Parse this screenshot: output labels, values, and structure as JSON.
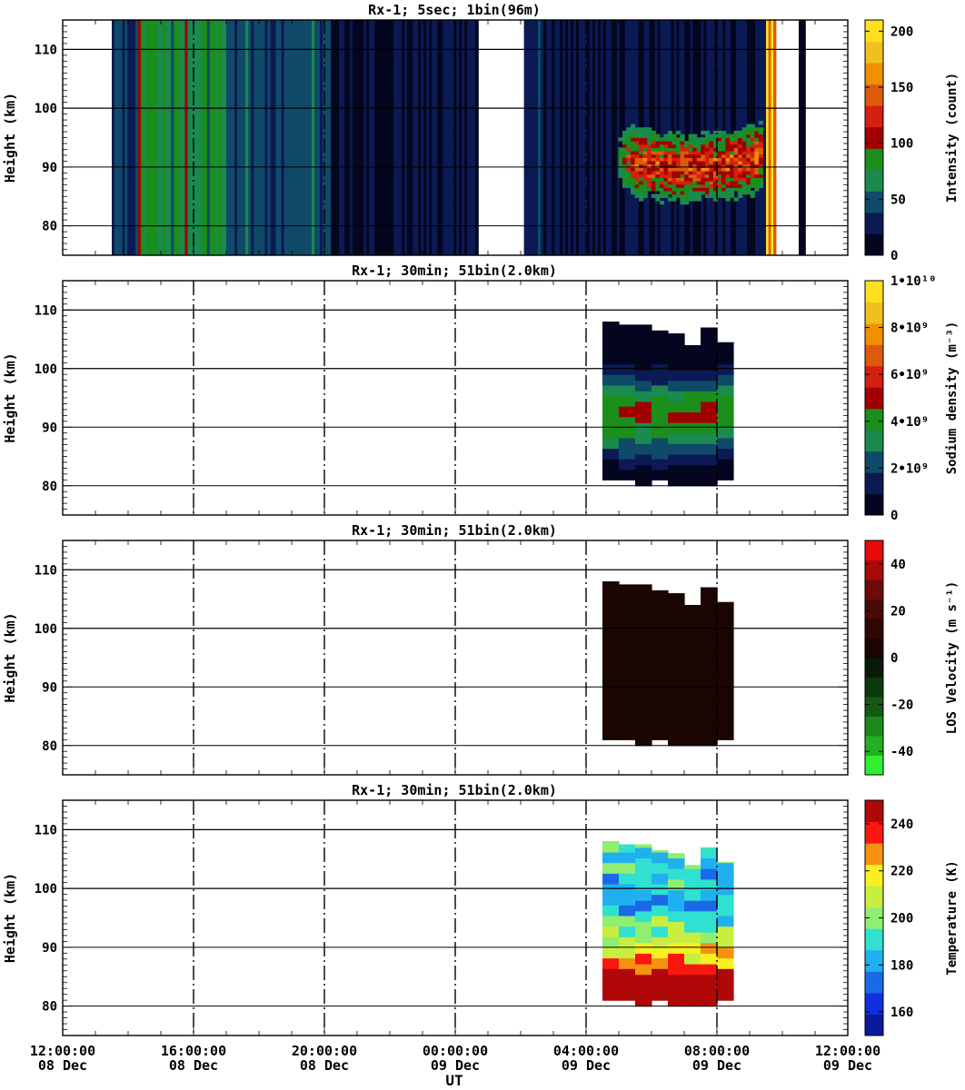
{
  "figure": {
    "shared_xlabel": "UT",
    "x_tick_labels": [
      {
        "time": "12:00:00",
        "date": "08 Dec"
      },
      {
        "time": "16:00:00",
        "date": "08 Dec"
      },
      {
        "time": "20:00:00",
        "date": "08 Dec"
      },
      {
        "time": "00:00:00",
        "date": "09 Dec"
      },
      {
        "time": "04:00:00",
        "date": "09 Dec"
      },
      {
        "time": "08:00:00",
        "date": "09 Dec"
      },
      {
        "time": "12:00:00",
        "date": "09 Dec"
      }
    ]
  },
  "chart_data": [
    {
      "type": "heatmap",
      "title": "Rx-1;  5sec; 1bin(96m)",
      "xlabel": "",
      "ylabel": "Height (km)",
      "xlim_hours": [
        0,
        24
      ],
      "ylim": [
        75,
        115
      ],
      "yticks": [
        80,
        90,
        100,
        110
      ],
      "colorbar": {
        "label": "Intensity (count)",
        "range": [
          0,
          210
        ],
        "ticks": [
          {
            "v": 0,
            "t": "0"
          },
          {
            "v": 50,
            "t": "50"
          },
          {
            "v": 100,
            "t": "100"
          },
          {
            "v": 150,
            "t": "150"
          },
          {
            "v": 200,
            "t": "200"
          }
        ],
        "colors": [
          "#04061f",
          "#0b1a55",
          "#0f4a68",
          "#1a8a4e",
          "#1b8e1b",
          "#a00000",
          "#d42010",
          "#dd5a0a",
          "#f09000",
          "#f0c020",
          "#ffe020"
        ]
      },
      "description_note": "",
      "series": [
        {
          "name": "",
          "segments": [
            {
              "x": [
                1.5,
                2.3
              ],
              "level": 40
            },
            {
              "x": [
                2.3,
                5.0
              ],
              "level": 75
            },
            {
              "x": [
                5.0,
                8.2
              ],
              "level": 45
            },
            {
              "x": [
                8.2,
                12.7
              ],
              "level": 18
            },
            {
              "x": [
                14.1,
                14.7
              ],
              "level": 35
            },
            {
              "x": [
                14.7,
                21.5
              ],
              "level": 20
            },
            {
              "x": [
                21.5,
                21.8
              ],
              "level": 180
            },
            {
              "x": [
                22.5,
                22.7
              ],
              "level": 5
            }
          ]
        },
        {
          "name": "",
          "layer": {
            "x": [
              16.1,
              21.4
            ],
            "y": [
              82,
              99
            ],
            "peak": 130
          }
        }
      ]
    },
    {
      "type": "heatmap",
      "title": "Rx-1; 30min; 51bin(2.0km)",
      "xlabel": "",
      "ylabel": "Height (km)",
      "xlim_hours": [
        0,
        24
      ],
      "ylim": [
        75,
        115
      ],
      "yticks": [
        80,
        90,
        100,
        110
      ],
      "colorbar": {
        "label": "Sodium density (m⁻³)",
        "range": [
          0,
          10000000000.0
        ],
        "ticks": [
          {
            "v": 0,
            "t": "0"
          },
          {
            "v": 2000000000.0,
            "t": "2•10⁹"
          },
          {
            "v": 4000000000.0,
            "t": "4•10⁹"
          },
          {
            "v": 6000000000.0,
            "t": "6•10⁹"
          },
          {
            "v": 8000000000.0,
            "t": "8•10⁹"
          },
          {
            "v": 10000000000.0,
            "t": "1•10¹⁰"
          }
        ],
        "colors": [
          "#04061f",
          "#0b1a55",
          "#0f4a68",
          "#1a8a4e",
          "#1b8e1b",
          "#a00000",
          "#d42010",
          "#dd5a0a",
          "#f09000",
          "#f0c020",
          "#ffe020"
        ]
      },
      "description_note": "",
      "series": [
        {
          "name": "",
          "block": {
            "x_start": 16.5,
            "dx": 0.5,
            "n": 8,
            "profile": "density"
          }
        }
      ]
    },
    {
      "type": "heatmap",
      "title": "Rx-1; 30min; 51bin(2.0km)",
      "xlabel": "",
      "ylabel": "Height (km)",
      "xlim_hours": [
        0,
        24
      ],
      "ylim": [
        75,
        115
      ],
      "yticks": [
        80,
        90,
        100,
        110
      ],
      "colorbar": {
        "label": "LOS Velocity (m s⁻¹)",
        "range": [
          -50,
          50
        ],
        "ticks": [
          {
            "v": -40,
            "t": "-40"
          },
          {
            "v": -20,
            "t": "-20"
          },
          {
            "v": 0,
            "t": "0"
          },
          {
            "v": 20,
            "t": "20"
          },
          {
            "v": 40,
            "t": "40"
          }
        ],
        "colors": [
          "#30ee30",
          "#22b022",
          "#1a8a1a",
          "#145a14",
          "#0c3a0c",
          "#0a1a0a",
          "#1a0502",
          "#2e0704",
          "#4a0906",
          "#6e0a08",
          "#a80a08",
          "#e80a08"
        ]
      },
      "description_note": "",
      "series": [
        {
          "name": "",
          "block": {
            "x_start": 16.5,
            "dx": 0.5,
            "n": 8,
            "profile": "velocity"
          }
        }
      ]
    },
    {
      "type": "heatmap",
      "title": "Rx-1; 30min; 51bin(2.0km)",
      "xlabel": "UT",
      "ylabel": "Height (km)",
      "xlim_hours": [
        0,
        24
      ],
      "ylim": [
        75,
        115
      ],
      "yticks": [
        80,
        90,
        100,
        110
      ],
      "colorbar": {
        "label": "Temperature (K)",
        "range": [
          150,
          250
        ],
        "ticks": [
          {
            "v": 160,
            "t": "160"
          },
          {
            "v": 180,
            "t": "180"
          },
          {
            "v": 200,
            "t": "200"
          },
          {
            "v": 220,
            "t": "220"
          },
          {
            "v": 240,
            "t": "240"
          }
        ],
        "colors": [
          "#0a1a9a",
          "#1030e0",
          "#1a6ae8",
          "#20b0f0",
          "#30e0d0",
          "#90ee70",
          "#c8ee40",
          "#f8f020",
          "#f89010",
          "#f81810",
          "#b00808"
        ]
      },
      "description_note": "",
      "series": [
        {
          "name": "",
          "block": {
            "x_start": 16.5,
            "dx": 0.5,
            "n": 8,
            "profile": "temperature"
          }
        }
      ]
    }
  ]
}
